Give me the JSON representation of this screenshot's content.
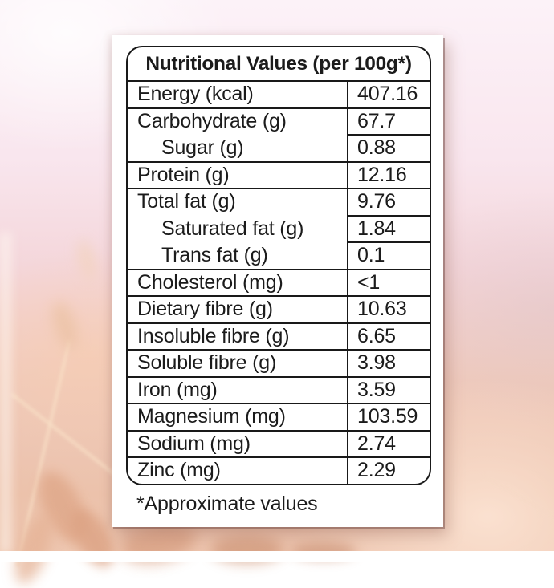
{
  "table": {
    "title": "Nutritional Values (per 100g*)",
    "rows": [
      {
        "label": "Energy (kcal)",
        "value": "407.16",
        "indent": false,
        "full_line": true
      },
      {
        "label": "Carbohydrate (g)",
        "value": "67.7",
        "indent": false,
        "full_line": true
      },
      {
        "label": "Sugar (g)",
        "value": "0.88",
        "indent": true,
        "full_line": false
      },
      {
        "label": "Protein (g)",
        "value": "12.16",
        "indent": false,
        "full_line": true
      },
      {
        "label": "Total fat (g)",
        "value": "9.76",
        "indent": false,
        "full_line": true
      },
      {
        "label": "Saturated fat (g)",
        "value": "1.84",
        "indent": true,
        "full_line": false
      },
      {
        "label": "Trans fat (g)",
        "value": "0.1",
        "indent": true,
        "full_line": false
      },
      {
        "label": "Cholesterol (mg)",
        "value": "<1",
        "indent": false,
        "full_line": true
      },
      {
        "label": "Dietary fibre (g)",
        "value": "10.63",
        "indent": false,
        "full_line": true
      },
      {
        "label": "Insoluble fibre (g)",
        "value": "6.65",
        "indent": false,
        "full_line": true
      },
      {
        "label": "Soluble fibre (g)",
        "value": "3.98",
        "indent": false,
        "full_line": true
      },
      {
        "label": "Iron (mg)",
        "value": "3.59",
        "indent": false,
        "full_line": true
      },
      {
        "label": "Magnesium (mg)",
        "value": "103.59",
        "indent": false,
        "full_line": true
      },
      {
        "label": "Sodium (mg)",
        "value": "2.74",
        "indent": false,
        "full_line": true
      },
      {
        "label": "Zinc (mg)",
        "value": "2.29",
        "indent": false,
        "full_line": true
      }
    ],
    "footnote": "*Approximate values"
  },
  "colors": {
    "ink": "#1b1b1b",
    "table_border": "#191919",
    "card_background": "#ffffff",
    "background_pink": "#f9e6ee",
    "background_peach": "#ecc2ab",
    "card_shadow": "#6e4842"
  }
}
